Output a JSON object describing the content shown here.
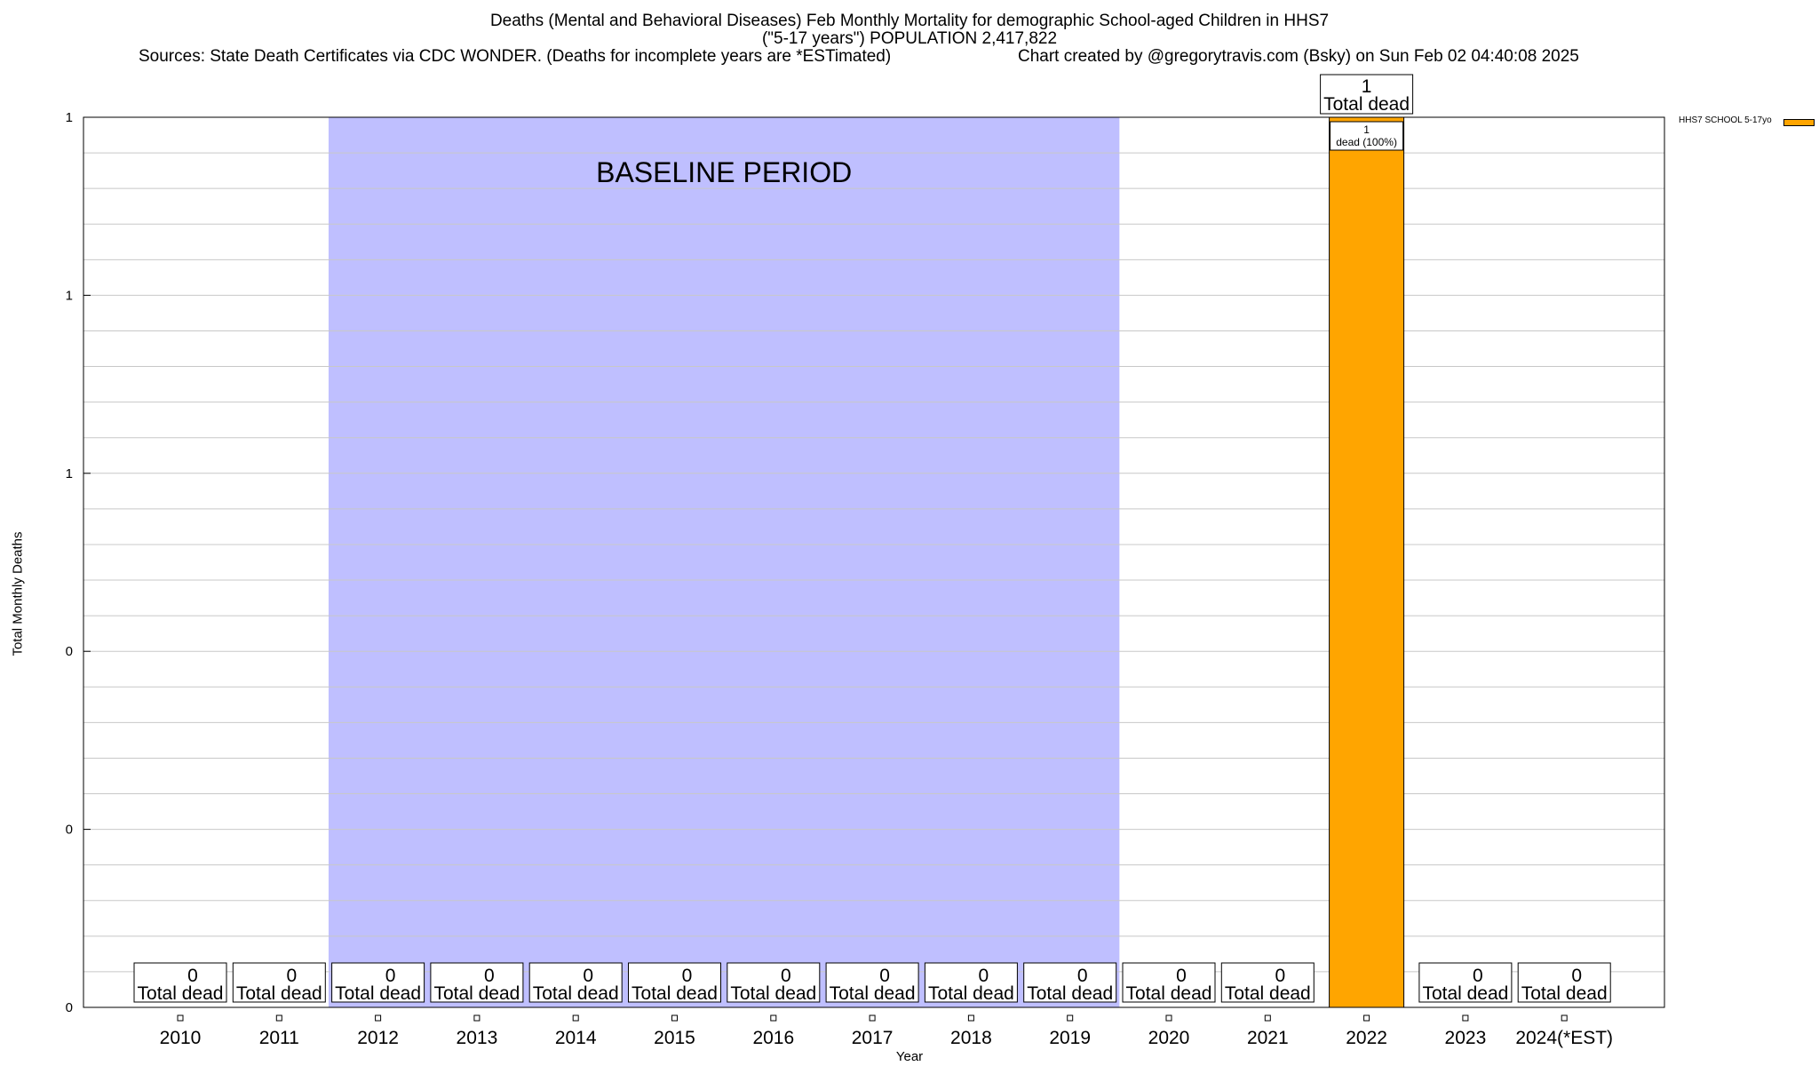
{
  "chart_data": {
    "type": "bar",
    "title_lines": [
      "Deaths (Mental and Behavioral Diseases) Feb Monthly Mortality for demographic School-aged Children in HHS7",
      "(\"5-17 years\") POPULATION 2,417,822"
    ],
    "sources": "Sources: State Death Certificates via CDC WONDER. (Deaths for incomplete years are *ESTimated)",
    "credit": "Chart created by @gregorytravis.com (Bsky) on Sun Feb 02 04:40:08 2025",
    "xlabel": "Year",
    "ylabel": "Total Monthly Deaths",
    "categories": [
      "2010",
      "2011",
      "2012",
      "2013",
      "2014",
      "2015",
      "2016",
      "2017",
      "2018",
      "2019",
      "2020",
      "2021",
      "2022",
      "2023",
      "2024(*EST)"
    ],
    "series": [
      {
        "name": "HHS7 SCHOOL 5-17yo",
        "color": "#ffa500",
        "values": [
          0,
          0,
          0,
          0,
          0,
          0,
          0,
          0,
          0,
          0,
          0,
          0,
          1,
          0,
          0
        ]
      }
    ],
    "bar_labels": {
      "prefix_text": "Total dead",
      "inner_line1": "1",
      "inner_line2": "dead (100%)"
    },
    "ylim": [
      0,
      1
    ],
    "y_tick_labels": [
      "0",
      "0",
      "0",
      "1",
      "1",
      "1"
    ],
    "baseline": {
      "label": "BASELINE PERIOD",
      "from": "2012",
      "to": "2019",
      "color": "#bfbfff"
    },
    "grid": true,
    "legend_position": "top-right"
  }
}
